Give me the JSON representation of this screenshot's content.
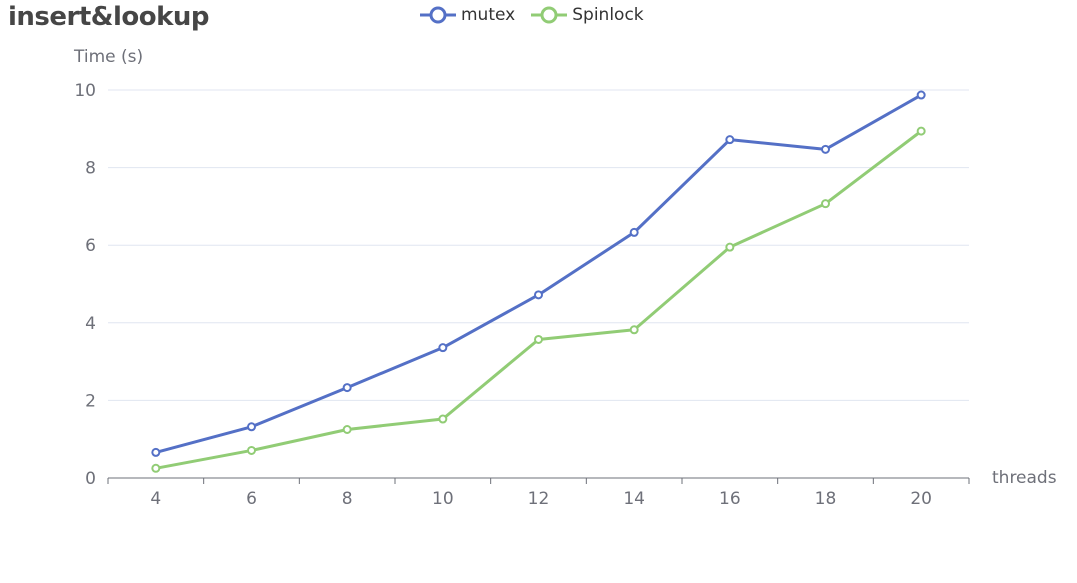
{
  "chart_data": {
    "type": "line",
    "title": "insert&lookup",
    "ylabel": "Time (s)",
    "xlabel": "threads",
    "categories": [
      "4",
      "6",
      "8",
      "10",
      "12",
      "14",
      "16",
      "18",
      "20"
    ],
    "ylim": [
      0,
      10
    ],
    "yticks": [
      0,
      2,
      4,
      6,
      8,
      10
    ],
    "grid": true,
    "legend_position": "top-center",
    "series": [
      {
        "name": "mutex",
        "color": "#5470c6",
        "values": [
          0.66,
          1.32,
          2.33,
          3.36,
          4.72,
          6.33,
          8.72,
          8.47,
          9.87
        ]
      },
      {
        "name": "Spinlock",
        "color": "#91cc75",
        "values": [
          0.25,
          0.71,
          1.25,
          1.52,
          3.57,
          3.82,
          5.95,
          7.07,
          8.94
        ]
      }
    ]
  }
}
